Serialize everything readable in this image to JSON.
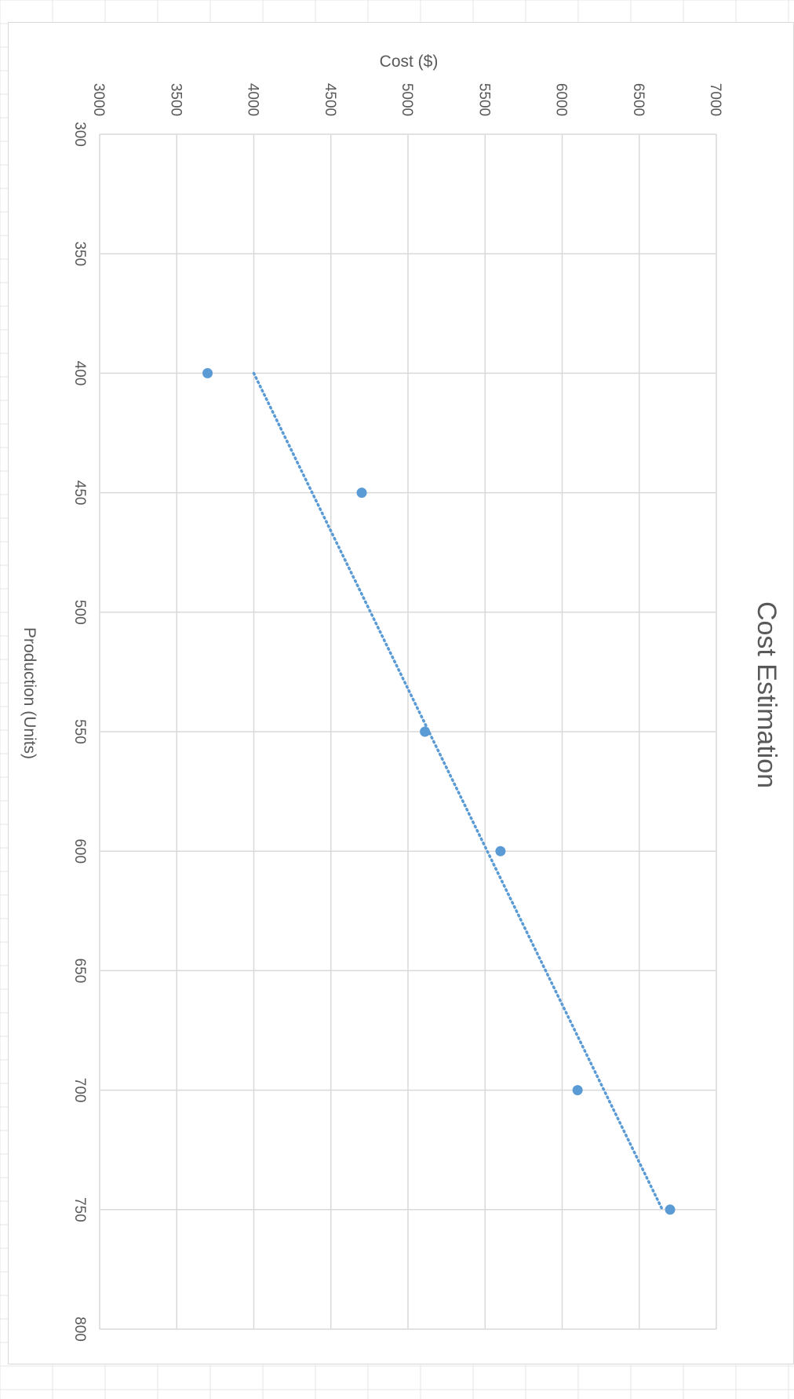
{
  "chart_data": {
    "type": "scatter",
    "title": "Cost Estimation",
    "xlabel": "Production (Units)",
    "ylabel": "Cost ($)",
    "xlim": [
      300,
      800
    ],
    "ylim": [
      3000,
      7000
    ],
    "x_ticks": [
      "300",
      "350",
      "400",
      "450",
      "500",
      "550",
      "600",
      "650",
      "700",
      "750",
      "800"
    ],
    "y_ticks": [
      "3000",
      "3500",
      "4000",
      "4500",
      "5000",
      "5500",
      "6000",
      "6500",
      "7000"
    ],
    "grid": true,
    "orientation": "rotated 90° clockwise",
    "series": [
      {
        "x": [
          400,
          450,
          550,
          600,
          700,
          750
        ],
        "y": [
          3700,
          4700,
          5110,
          5600,
          6100,
          6700
        ]
      }
    ],
    "trendline": {
      "style": "dotted",
      "from": {
        "x": 400,
        "y": 4000
      },
      "to": {
        "x": 750,
        "y": 6650
      }
    },
    "colors": {
      "marker": "#5b9bd5",
      "gridline": "#d9d9d9",
      "text": "#595959"
    }
  }
}
